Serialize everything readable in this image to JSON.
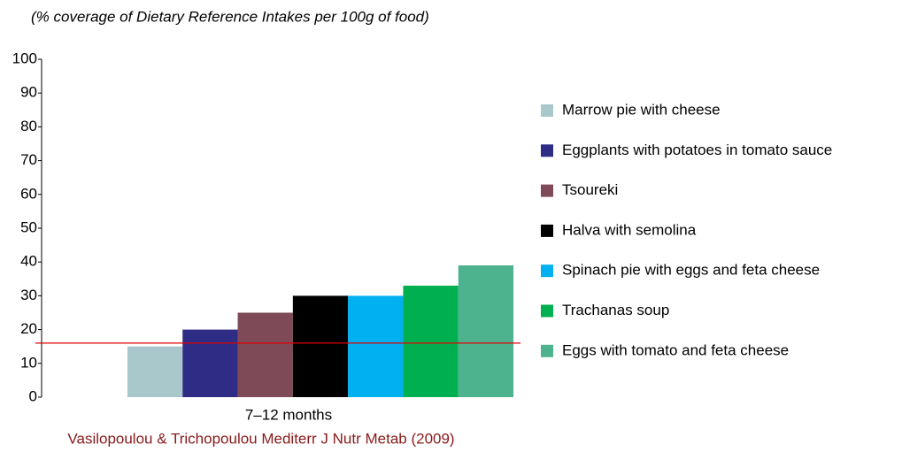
{
  "chart_data": {
    "type": "bar",
    "subtitle": "(% coverage of Dietary Reference Intakes per 100g of food)",
    "categories": [
      "7–12 months"
    ],
    "series": [
      {
        "name": "Marrow pie with cheese",
        "color": "#a9c8cc",
        "values": [
          15
        ]
      },
      {
        "name": "Eggplants with potatoes in tomato sauce",
        "color": "#2e2c84",
        "values": [
          20
        ]
      },
      {
        "name": "Tsoureki",
        "color": "#7f4a57",
        "values": [
          25
        ]
      },
      {
        "name": "Halva with semolina",
        "color": "#000000",
        "values": [
          30
        ]
      },
      {
        "name": "Spinach pie with eggs and feta cheese",
        "color": "#00b0f0",
        "values": [
          30
        ]
      },
      {
        "name": "Trachanas soup",
        "color": "#00b050",
        "values": [
          33
        ]
      },
      {
        "name": "Eggs with tomato and feta cheese",
        "color": "#4db38e",
        "values": [
          39
        ]
      }
    ],
    "reference_line": 16,
    "reference_color": "#e00000",
    "ylim": [
      0,
      100
    ],
    "yticks": [
      0,
      10,
      20,
      30,
      40,
      50,
      60,
      70,
      80,
      90,
      100
    ],
    "legend": "right",
    "source": "Vasilopoulou & Trichopoulou Mediterr J Nutr Metab (2009)"
  }
}
